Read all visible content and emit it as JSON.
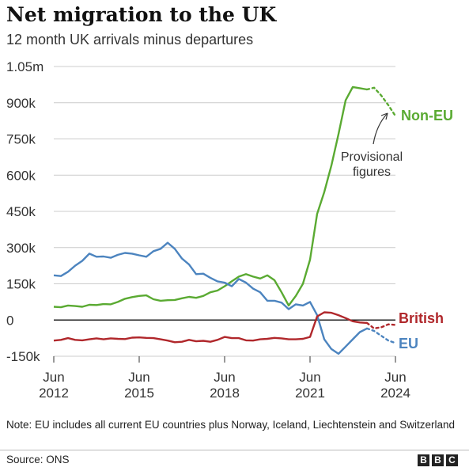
{
  "title": "Net migration to the UK",
  "subtitle": "12 month UK arrivals minus departures",
  "note": "Note: EU includes all current EU countries plus Norway, Iceland, Liechtenstein and Switzerland",
  "source": "Source: ONS",
  "logo": [
    "B",
    "B",
    "C"
  ],
  "colors": {
    "non_eu": "#5aaa32",
    "eu": "#4c84bf",
    "british": "#b0272b",
    "grid": "#cccccc",
    "zero": "#222222"
  },
  "chart_data": {
    "type": "line",
    "ylim": [
      -150000,
      1050000
    ],
    "xlim": [
      2012.5,
      2024.5
    ],
    "grid": true,
    "yticks": [
      {
        "value": -150000,
        "label": "-150k"
      },
      {
        "value": 0,
        "label": "0"
      },
      {
        "value": 150000,
        "label": "150k"
      },
      {
        "value": 300000,
        "label": "300k"
      },
      {
        "value": 450000,
        "label": "450k"
      },
      {
        "value": 600000,
        "label": "600k"
      },
      {
        "value": 750000,
        "label": "750k"
      },
      {
        "value": 900000,
        "label": "900k"
      },
      {
        "value": 1050000,
        "label": "1.05m"
      }
    ],
    "xticks": [
      {
        "value": 2012.5,
        "month": "Jun",
        "year": "2012"
      },
      {
        "value": 2015.5,
        "month": "Jun",
        "year": "2015"
      },
      {
        "value": 2018.5,
        "month": "Jun",
        "year": "2018"
      },
      {
        "value": 2021.5,
        "month": "Jun",
        "year": "2021"
      },
      {
        "value": 2024.5,
        "month": "Jun",
        "year": "2024"
      }
    ],
    "annotation": "Provisional figures",
    "series": [
      {
        "name": "Non-EU",
        "color": "#5aaa32",
        "x": [
          2012.5,
          2012.75,
          2013.0,
          2013.25,
          2013.5,
          2013.75,
          2014.0,
          2014.25,
          2014.5,
          2014.75,
          2015.0,
          2015.25,
          2015.5,
          2015.75,
          2016.0,
          2016.25,
          2016.5,
          2016.75,
          2017.0,
          2017.25,
          2017.5,
          2017.75,
          2018.0,
          2018.25,
          2018.5,
          2018.75,
          2019.0,
          2019.25,
          2019.5,
          2019.75,
          2020.0,
          2020.25,
          2020.5,
          2020.75,
          2021.0,
          2021.25,
          2021.5,
          2021.75,
          2022.0,
          2022.25,
          2022.5,
          2022.75,
          2023.0,
          2023.25,
          2023.5
        ],
        "values": [
          55000,
          53000,
          60000,
          58000,
          55000,
          63000,
          62000,
          66000,
          65000,
          75000,
          88000,
          95000,
          100000,
          102000,
          86000,
          80000,
          82000,
          83000,
          90000,
          96000,
          92000,
          100000,
          115000,
          122000,
          140000,
          160000,
          180000,
          190000,
          180000,
          172000,
          185000,
          165000,
          115000,
          60000,
          100000,
          150000,
          250000,
          440000,
          530000,
          640000,
          770000,
          910000,
          965000,
          960000,
          955000
        ],
        "prov_x": [
          2023.5,
          2023.75,
          2024.0,
          2024.25,
          2024.5
        ],
        "prov_values": [
          955000,
          962000,
          930000,
          890000,
          845000
        ]
      },
      {
        "name": "EU",
        "color": "#4c84bf",
        "x": [
          2012.5,
          2012.75,
          2013.0,
          2013.25,
          2013.5,
          2013.75,
          2014.0,
          2014.25,
          2014.5,
          2014.75,
          2015.0,
          2015.25,
          2015.5,
          2015.75,
          2016.0,
          2016.25,
          2016.5,
          2016.75,
          2017.0,
          2017.25,
          2017.5,
          2017.75,
          2018.0,
          2018.25,
          2018.5,
          2018.75,
          2019.0,
          2019.25,
          2019.5,
          2019.75,
          2020.0,
          2020.25,
          2020.5,
          2020.75,
          2021.0,
          2021.25,
          2021.5,
          2021.75,
          2022.0,
          2022.25,
          2022.5,
          2022.75,
          2023.0,
          2023.25,
          2023.5
        ],
        "values": [
          185000,
          182000,
          200000,
          225000,
          245000,
          275000,
          262000,
          263000,
          258000,
          270000,
          278000,
          275000,
          268000,
          262000,
          285000,
          295000,
          320000,
          295000,
          255000,
          230000,
          190000,
          192000,
          175000,
          160000,
          155000,
          140000,
          170000,
          155000,
          130000,
          115000,
          80000,
          80000,
          72000,
          45000,
          65000,
          60000,
          75000,
          20000,
          -80000,
          -120000,
          -140000,
          -110000,
          -80000,
          -50000,
          -35000
        ],
        "prov_x": [
          2023.5,
          2023.75,
          2024.0,
          2024.25,
          2024.5
        ],
        "prov_values": [
          -35000,
          -45000,
          -65000,
          -85000,
          -95000
        ]
      },
      {
        "name": "British",
        "color": "#b0272b",
        "x": [
          2012.5,
          2012.75,
          2013.0,
          2013.25,
          2013.5,
          2013.75,
          2014.0,
          2014.25,
          2014.5,
          2014.75,
          2015.0,
          2015.25,
          2015.5,
          2015.75,
          2016.0,
          2016.25,
          2016.5,
          2016.75,
          2017.0,
          2017.25,
          2017.5,
          2017.75,
          2018.0,
          2018.25,
          2018.5,
          2018.75,
          2019.0,
          2019.25,
          2019.5,
          2019.75,
          2020.0,
          2020.25,
          2020.5,
          2020.75,
          2021.0,
          2021.25,
          2021.5,
          2021.75,
          2022.0,
          2022.25,
          2022.5,
          2022.75,
          2023.0,
          2023.25,
          2023.5
        ],
        "values": [
          -85000,
          -82000,
          -75000,
          -82000,
          -84000,
          -80000,
          -76000,
          -80000,
          -76000,
          -78000,
          -79000,
          -73000,
          -72000,
          -74000,
          -75000,
          -80000,
          -85000,
          -92000,
          -90000,
          -82000,
          -88000,
          -86000,
          -90000,
          -82000,
          -70000,
          -75000,
          -75000,
          -84000,
          -85000,
          -80000,
          -78000,
          -74000,
          -76000,
          -80000,
          -80000,
          -78000,
          -70000,
          15000,
          32000,
          30000,
          20000,
          8000,
          -5000,
          -10000,
          -12000
        ],
        "prov_x": [
          2023.5,
          2023.75,
          2024.0,
          2024.25,
          2024.5
        ],
        "prov_values": [
          -12000,
          -35000,
          -30000,
          -18000,
          -20000
        ]
      }
    ]
  }
}
